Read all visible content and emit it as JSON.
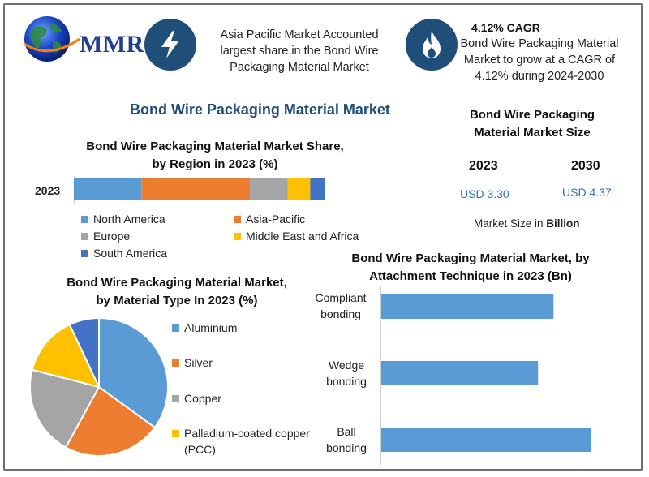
{
  "header": {
    "logo_text": "MMR",
    "info1": [
      "Asia Pacific Market Accounted",
      "largest share in the Bond Wire",
      "Packaging Material Market"
    ],
    "cagr_title": "4.12% CAGR",
    "cagr_text": [
      "Bond Wire Packaging Material",
      "Market to grow at a CAGR of",
      "4.12% during 2024-2030"
    ]
  },
  "main_title": "Bond Wire Packaging Material Market",
  "market_size": {
    "title": [
      "Bond Wire Packaging",
      "Material Market Size"
    ],
    "year1": "2023",
    "year2": "2030",
    "value1": "USD 3.30",
    "value2": "USD 4.37",
    "note_prefix": "Market Size in ",
    "note_bold": "Billion"
  },
  "colors": {
    "blue": "#5b9bd5",
    "orange": "#ed7d31",
    "gray": "#a5a5a5",
    "yellow": "#ffc000",
    "darkblue": "#4472c4",
    "navy": "#1f4e79"
  },
  "chart_data": [
    {
      "type": "bar",
      "orientation": "stacked-horizontal",
      "title": [
        "Bond Wire Packaging Material Market Share,",
        "by Region in 2023 (%)"
      ],
      "categories": [
        "2023"
      ],
      "series": [
        {
          "name": "North America",
          "values": [
            27
          ],
          "color": "#5b9bd5"
        },
        {
          "name": "Asia-Pacific",
          "values": [
            43
          ],
          "color": "#ed7d31"
        },
        {
          "name": "Europe",
          "values": [
            15
          ],
          "color": "#a5a5a5"
        },
        {
          "name": "Middle East and Africa",
          "values": [
            9
          ],
          "color": "#ffc000"
        },
        {
          "name": "South America",
          "values": [
            6
          ],
          "color": "#4472c4"
        }
      ],
      "legend": "bottom"
    },
    {
      "type": "pie",
      "title": [
        "Bond Wire Packaging Material Market,",
        "by Material Type In 2023 (%)"
      ],
      "slices": [
        {
          "name": "Aluminium",
          "value": 35,
          "color": "#5b9bd5"
        },
        {
          "name": "Silver",
          "value": 23,
          "color": "#ed7d31"
        },
        {
          "name": "Copper",
          "value": 21,
          "color": "#a5a5a5"
        },
        {
          "name": "Palladium-coated copper (PCC)",
          "value": 14,
          "color": "#ffc000"
        },
        {
          "name": "",
          "value": 7,
          "color": "#4472c4"
        }
      ],
      "legend_labels": [
        "Aluminium",
        "Silver",
        "Copper",
        "Palladium-coated copper",
        "(PCC)"
      ],
      "legend": "right"
    },
    {
      "type": "bar",
      "orientation": "horizontal",
      "title": [
        "Bond Wire Packaging Material Market, by",
        "Attachment Technique in 2023 (Bn)"
      ],
      "categories": [
        [
          "Compliant",
          "bonding"
        ],
        [
          "Wedge",
          "bonding"
        ],
        [
          "Ball",
          "bonding"
        ]
      ],
      "values": [
        1.0,
        0.91,
        1.22
      ],
      "xlim": [
        0,
        1.3
      ],
      "color": "#5b9bd5",
      "grid": false
    }
  ]
}
